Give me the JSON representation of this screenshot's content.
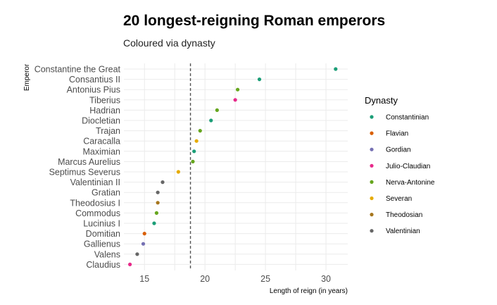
{
  "chart_data": {
    "type": "scatter",
    "title": "20 longest-reigning Roman emperors",
    "subtitle": "Coloured via dynasty",
    "xlabel": "Length of reign (in years)",
    "ylabel": "Emperor",
    "xlim": [
      13.3,
      31.8
    ],
    "xticks": [
      15,
      20,
      25,
      30
    ],
    "grid": true,
    "legend_placement": "right",
    "legend_title": "Dynasty",
    "reference_line": {
      "x": 18.8,
      "style": "dashed"
    },
    "dynasties": [
      {
        "name": "Constantinian",
        "color": "#1B9E77"
      },
      {
        "name": "Flavian",
        "color": "#D95F02"
      },
      {
        "name": "Gordian",
        "color": "#7570B3"
      },
      {
        "name": "Julio-Claudian",
        "color": "#E7298A"
      },
      {
        "name": "Nerva-Antonine",
        "color": "#66A61E"
      },
      {
        "name": "Severan",
        "color": "#E6AB02"
      },
      {
        "name": "Theodosian",
        "color": "#A6761D"
      },
      {
        "name": "Valentinian",
        "color": "#666666"
      }
    ],
    "points": [
      {
        "emperor": "Constantine the Great",
        "reign": 30.8,
        "dynasty": "Constantinian"
      },
      {
        "emperor": "Consantius II",
        "reign": 24.5,
        "dynasty": "Constantinian"
      },
      {
        "emperor": "Antonius Pius",
        "reign": 22.7,
        "dynasty": "Nerva-Antonine"
      },
      {
        "emperor": "Tiberius",
        "reign": 22.5,
        "dynasty": "Julio-Claudian"
      },
      {
        "emperor": "Hadrian",
        "reign": 21.0,
        "dynasty": "Nerva-Antonine"
      },
      {
        "emperor": "Diocletian",
        "reign": 20.5,
        "dynasty": "Constantinian"
      },
      {
        "emperor": "Trajan",
        "reign": 19.6,
        "dynasty": "Nerva-Antonine"
      },
      {
        "emperor": "Caracalla",
        "reign": 19.3,
        "dynasty": "Severan"
      },
      {
        "emperor": "Maximian",
        "reign": 19.1,
        "dynasty": "Constantinian"
      },
      {
        "emperor": "Marcus Aurelius",
        "reign": 19.0,
        "dynasty": "Nerva-Antonine"
      },
      {
        "emperor": "Septimus Severus",
        "reign": 17.8,
        "dynasty": "Severan"
      },
      {
        "emperor": "Valentinian II",
        "reign": 16.5,
        "dynasty": "Valentinian"
      },
      {
        "emperor": "Gratian",
        "reign": 16.1,
        "dynasty": "Valentinian"
      },
      {
        "emperor": "Theodosius I",
        "reign": 16.1,
        "dynasty": "Theodosian"
      },
      {
        "emperor": "Commodus",
        "reign": 16.0,
        "dynasty": "Nerva-Antonine"
      },
      {
        "emperor": "Lucinius I",
        "reign": 15.8,
        "dynasty": "Constantinian"
      },
      {
        "emperor": "Domitian",
        "reign": 15.0,
        "dynasty": "Flavian"
      },
      {
        "emperor": "Gallienus",
        "reign": 14.9,
        "dynasty": "Gordian"
      },
      {
        "emperor": "Valens",
        "reign": 14.4,
        "dynasty": "Valentinian"
      },
      {
        "emperor": "Claudius",
        "reign": 13.8,
        "dynasty": "Julio-Claudian"
      }
    ]
  }
}
